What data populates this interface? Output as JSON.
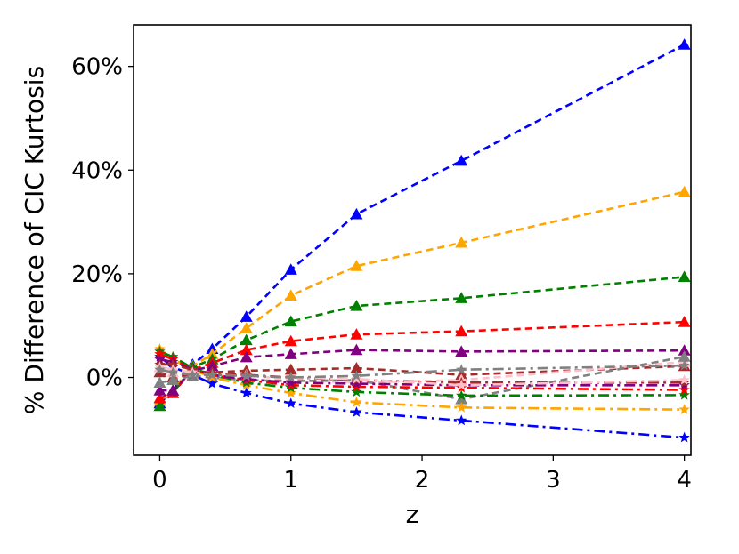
{
  "chart_data": {
    "type": "line",
    "title": "",
    "xlabel": "z",
    "ylabel": "% Difference of CIC Kurtosis",
    "xlim": [
      -0.2,
      4.05
    ],
    "ylim": [
      -15,
      68
    ],
    "grid": false,
    "x_ticks": [
      {
        "value": 0,
        "label": "0"
      },
      {
        "value": 1,
        "label": "1"
      },
      {
        "value": 2,
        "label": "2"
      },
      {
        "value": 3,
        "label": "3"
      },
      {
        "value": 4,
        "label": "4"
      }
    ],
    "y_ticks": [
      {
        "value": 0,
        "label": "0%"
      },
      {
        "value": 20,
        "label": "20%"
      },
      {
        "value": 40,
        "label": "40%"
      },
      {
        "value": 60,
        "label": "60%"
      }
    ],
    "x": [
      0,
      0.1,
      0.25,
      0.4,
      0.66,
      1.0,
      1.5,
      2.3,
      4.0
    ],
    "series": [
      {
        "color": "#0000ff",
        "dash": "dashed",
        "marker": "triangle",
        "values": [
          -5,
          -2.5,
          2.5,
          5.5,
          11.7,
          20.8,
          31.5,
          41.8,
          64.2
        ]
      },
      {
        "color": "#ffa500",
        "dash": "dashed",
        "marker": "triangle",
        "values": [
          -4.5,
          -2.5,
          2.2,
          4.5,
          9.5,
          15.8,
          21.5,
          26.0,
          35.8
        ]
      },
      {
        "color": "#008000",
        "dash": "dashed",
        "marker": "triangle",
        "values": [
          -5.5,
          -3.0,
          2.0,
          3.5,
          7.2,
          10.8,
          13.8,
          15.3,
          19.4
        ]
      },
      {
        "color": "#ff0000",
        "dash": "dashed",
        "marker": "triangle",
        "values": [
          -4.0,
          -3.0,
          1.5,
          2.8,
          5.3,
          7.0,
          8.3,
          8.9,
          10.7
        ]
      },
      {
        "color": "#800080",
        "dash": "dashed",
        "marker": "triangle",
        "values": [
          -2.5,
          -2.5,
          1.3,
          2.2,
          3.9,
          4.5,
          5.3,
          5.0,
          5.2
        ]
      },
      {
        "color": "#a52a2a",
        "dash": "dashed",
        "marker": "triangle",
        "values": [
          1.0,
          0.0,
          0.8,
          1.0,
          1.3,
          1.5,
          1.8,
          0.5,
          2.2
        ]
      },
      {
        "color": "#ffc0cb",
        "dash": "dashed",
        "marker": "triangle",
        "values": [
          2.0,
          1.0,
          0.5,
          0.5,
          0.5,
          -0.5,
          -1.0,
          -0.5,
          3.0
        ]
      },
      {
        "color": "#808080",
        "dash": "dashed",
        "marker": "triangle",
        "values": [
          -1.0,
          -0.5,
          0.3,
          0.0,
          -0.5,
          -0.7,
          -0.5,
          -4.2,
          4.0
        ]
      },
      {
        "color": "#0000ff",
        "dash": "dashdot",
        "marker": "star",
        "values": [
          4.0,
          2.0,
          0.5,
          -1.2,
          -3.0,
          -5.0,
          -6.7,
          -8.3,
          -11.6
        ]
      },
      {
        "color": "#ffa500",
        "dash": "dashdot",
        "marker": "star",
        "values": [
          5.5,
          3.5,
          1.5,
          0.0,
          -1.5,
          -3.0,
          -4.8,
          -5.8,
          -6.2
        ]
      },
      {
        "color": "#008000",
        "dash": "dashdot",
        "marker": "star",
        "values": [
          5.0,
          4.0,
          1.8,
          0.5,
          -1.0,
          -2.0,
          -2.8,
          -3.5,
          -3.4
        ]
      },
      {
        "color": "#ff0000",
        "dash": "dashdot",
        "marker": "star",
        "values": [
          4.5,
          3.5,
          1.5,
          0.5,
          -0.5,
          -1.5,
          -1.8,
          -2.0,
          -2.4
        ]
      },
      {
        "color": "#800080",
        "dash": "dashdot",
        "marker": "star",
        "values": [
          3.5,
          3.0,
          1.5,
          0.5,
          -0.3,
          -1.0,
          -1.2,
          -1.5,
          -1.5
        ]
      },
      {
        "color": "#a52a2a",
        "dash": "dashdot",
        "marker": "star",
        "values": [
          2.5,
          2.5,
          1.5,
          0.8,
          0.5,
          0.0,
          -0.5,
          -1.0,
          -1.0
        ]
      },
      {
        "color": "#ffc0cb",
        "dash": "dashdot",
        "marker": "star",
        "values": [
          2.0,
          1.5,
          1.0,
          0.5,
          0.3,
          0.0,
          -0.3,
          -1.5,
          -0.5
        ]
      },
      {
        "color": "#808080",
        "dash": "dashdot",
        "marker": "star",
        "values": [
          1.5,
          1.0,
          0.5,
          0.5,
          0.3,
          0.0,
          0.3,
          1.5,
          2.3
        ]
      }
    ]
  }
}
